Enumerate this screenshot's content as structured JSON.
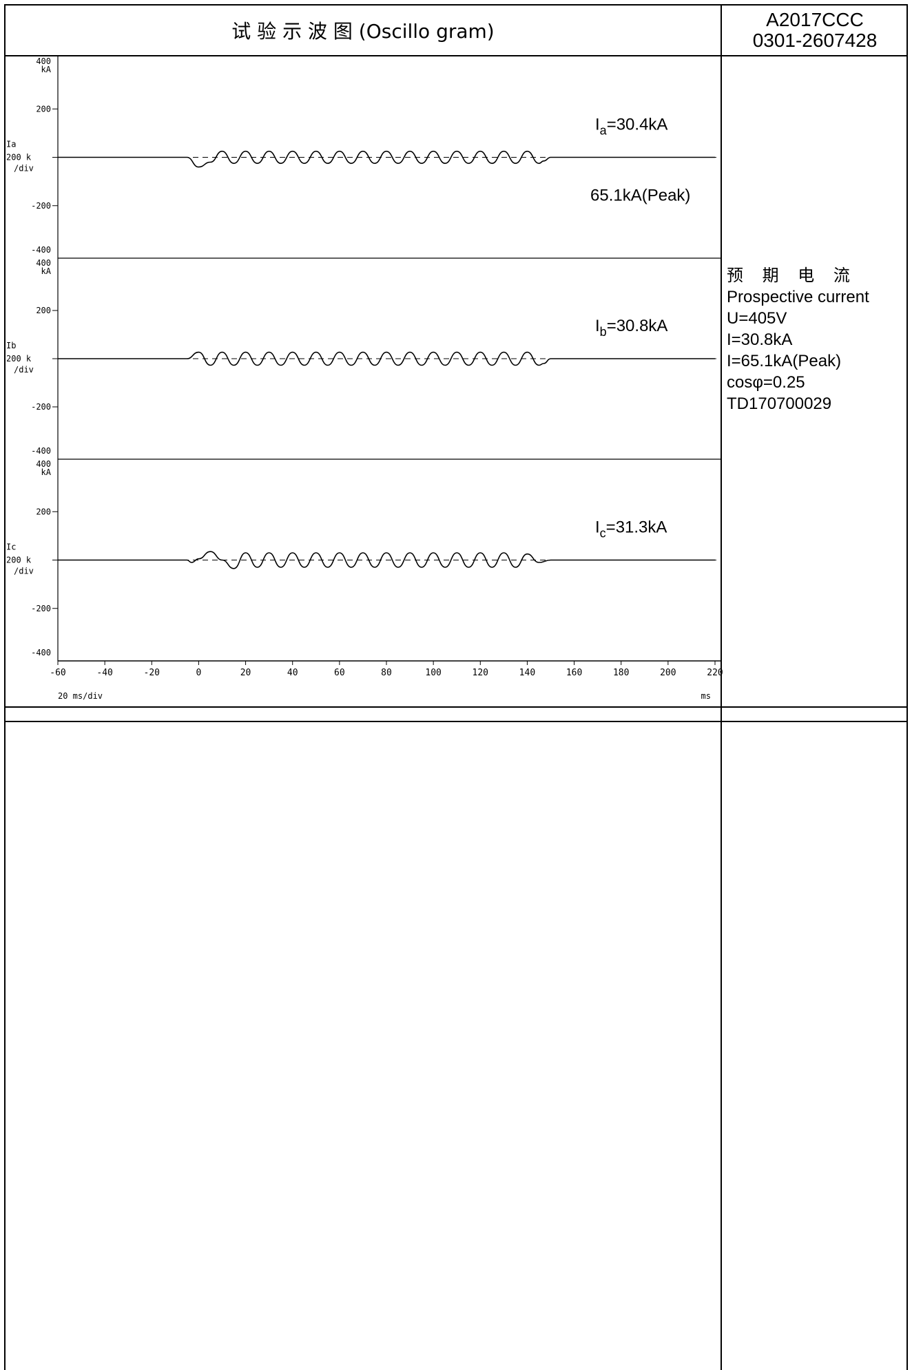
{
  "header": {
    "title": "试 验 示 波 图 (Oscillo gram)",
    "report_no_line1": "A2017CCC",
    "report_no_line2": "0301-2607428"
  },
  "prospective": {
    "label_cn": "预 期 电 流",
    "label_en": "Prospective current",
    "voltage": "U=405V",
    "current": "I=30.8kA",
    "peak": "I=65.1kA(Peak)",
    "power_factor": "cosφ=0.25",
    "test_id": "TD170700029"
  },
  "timebase": {
    "per_div": "20 ms/div",
    "unit": "ms"
  },
  "colors": {
    "trace": "#000000",
    "grid": "#000000"
  },
  "chart_data": [
    {
      "type": "line",
      "channel": "Ia",
      "scale": "200 k",
      "scale_unit": "/div",
      "y_unit": "kA",
      "ylim": [
        -400,
        400
      ],
      "y_ticks": [
        "400",
        "200",
        "-200",
        "-400"
      ],
      "xlim": [
        -60,
        220
      ],
      "rms_label": "Ia=30.4kA",
      "rms_sub": "a",
      "rms_value": "=30.4kA",
      "peak_label": "65.1kA(Peak)",
      "x": [
        -60,
        -5,
        0,
        5,
        10,
        15,
        20,
        25,
        30,
        35,
        40,
        45,
        50,
        55,
        60,
        65,
        70,
        75,
        80,
        85,
        90,
        95,
        100,
        105,
        110,
        115,
        120,
        125,
        130,
        135,
        140,
        145,
        147,
        150,
        220
      ],
      "y": [
        0,
        0,
        -40,
        -20,
        25,
        -25,
        25,
        -25,
        25,
        -25,
        25,
        -25,
        25,
        -25,
        25,
        -25,
        25,
        -25,
        25,
        -25,
        25,
        -25,
        25,
        -25,
        25,
        -25,
        25,
        -25,
        25,
        -25,
        25,
        -25,
        -15,
        0,
        0
      ]
    },
    {
      "type": "line",
      "channel": "Ib",
      "scale": "200 k",
      "scale_unit": "/div",
      "y_unit": "kA",
      "ylim": [
        -400,
        400
      ],
      "y_ticks": [
        "400",
        "200",
        "-200",
        "-400"
      ],
      "xlim": [
        -60,
        220
      ],
      "rms_label": "Ib=30.8kA",
      "rms_sub": "b",
      "rms_value": "=30.8kA",
      "x": [
        -60,
        -5,
        0,
        5,
        10,
        15,
        20,
        25,
        30,
        35,
        40,
        45,
        50,
        55,
        60,
        65,
        70,
        75,
        80,
        85,
        90,
        95,
        100,
        105,
        110,
        115,
        120,
        125,
        130,
        135,
        140,
        145,
        147,
        150,
        220
      ],
      "y": [
        0,
        0,
        27,
        -27,
        27,
        -27,
        27,
        -27,
        27,
        -27,
        27,
        -27,
        27,
        -27,
        27,
        -27,
        27,
        -27,
        27,
        -27,
        27,
        -27,
        27,
        -27,
        27,
        -27,
        27,
        -27,
        27,
        -27,
        27,
        -27,
        -20,
        0,
        0
      ]
    },
    {
      "type": "line",
      "channel": "Ic",
      "scale": "200 k",
      "scale_unit": "/div",
      "y_unit": "kA",
      "ylim": [
        -400,
        400
      ],
      "y_ticks": [
        "400",
        "200",
        "-200",
        "-400"
      ],
      "xlim": [
        -60,
        220
      ],
      "x_ticks": [
        -60,
        -40,
        -20,
        0,
        20,
        40,
        60,
        80,
        100,
        120,
        140,
        160,
        180,
        200,
        220
      ],
      "rms_label": "Ic=31.3kA",
      "rms_sub": "c",
      "rms_value": "=31.3kA",
      "x": [
        -60,
        -5,
        -3,
        0,
        5,
        10,
        15,
        20,
        25,
        30,
        35,
        40,
        45,
        50,
        55,
        60,
        65,
        70,
        75,
        80,
        85,
        90,
        95,
        100,
        105,
        110,
        115,
        120,
        125,
        130,
        135,
        140,
        145,
        150,
        220
      ],
      "y": [
        0,
        0,
        -10,
        5,
        35,
        0,
        -35,
        30,
        -30,
        30,
        -30,
        30,
        -30,
        30,
        -30,
        30,
        -30,
        30,
        -30,
        30,
        -30,
        30,
        -30,
        30,
        -30,
        30,
        -30,
        30,
        -30,
        30,
        -30,
        25,
        -10,
        0,
        0
      ]
    }
  ]
}
